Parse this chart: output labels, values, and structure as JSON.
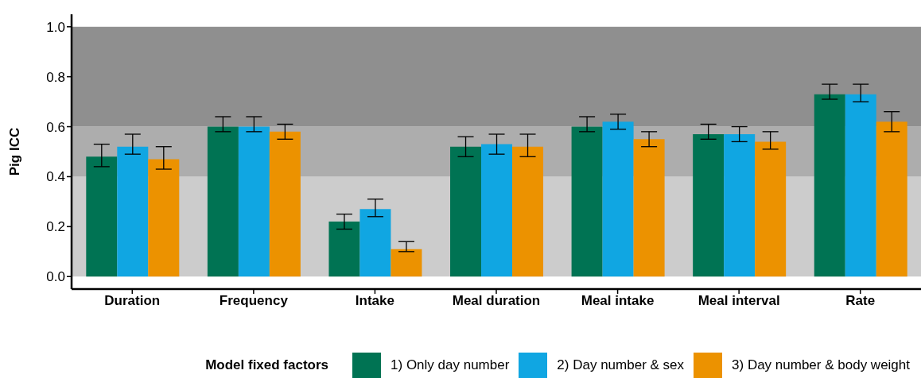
{
  "chart_data": {
    "type": "bar",
    "ylabel": "Pig ICC",
    "legend_title": "Model fixed factors",
    "legend": "bottom",
    "grid": false,
    "categories": [
      "Duration",
      "Frequency",
      "Intake",
      "Meal duration",
      "Meal intake",
      "Meal interval",
      "Rate"
    ],
    "ylim": [
      -0.05,
      1.05
    ],
    "yticks": [
      {
        "value": 0,
        "label": "0.0"
      },
      {
        "value": 0.2,
        "label": "0.2"
      },
      {
        "value": 0.4,
        "label": "0.4"
      },
      {
        "value": 0.6,
        "label": "0.6"
      },
      {
        "value": 0.8,
        "label": "0.8"
      },
      {
        "value": 1,
        "label": "1.0"
      }
    ],
    "bands": [
      {
        "axis": "y",
        "from": 0,
        "to": 0.4,
        "color": "#cccccc"
      },
      {
        "axis": "y",
        "from": 0.4,
        "to": 0.6,
        "color": "#adadad"
      },
      {
        "axis": "y",
        "from": 0.6,
        "to": 1,
        "color": "#8f8f8f"
      }
    ],
    "series": [
      {
        "name": "1) Only day number",
        "color": "#007353",
        "values": [
          0.48,
          0.6,
          0.22,
          0.52,
          0.6,
          0.57,
          0.73
        ],
        "errors": [
          [
            0.44,
            0.53
          ],
          [
            0.58,
            0.64
          ],
          [
            0.19,
            0.25
          ],
          [
            0.48,
            0.56
          ],
          [
            0.58,
            0.64
          ],
          [
            0.55,
            0.61
          ],
          [
            0.71,
            0.77
          ]
        ]
      },
      {
        "name": "2) Day number & sex",
        "color": "#10a6e2",
        "values": [
          0.52,
          0.6,
          0.27,
          0.53,
          0.62,
          0.57,
          0.73
        ],
        "errors": [
          [
            0.49,
            0.57
          ],
          [
            0.58,
            0.64
          ],
          [
            0.24,
            0.31
          ],
          [
            0.49,
            0.57
          ],
          [
            0.59,
            0.65
          ],
          [
            0.54,
            0.6
          ],
          [
            0.7,
            0.77
          ]
        ]
      },
      {
        "name": "3) Day number & body weight",
        "color": "#ec9200",
        "values": [
          0.47,
          0.58,
          0.11,
          0.52,
          0.55,
          0.54,
          0.62
        ],
        "errors": [
          [
            0.43,
            0.52
          ],
          [
            0.55,
            0.61
          ],
          [
            0.1,
            0.14
          ],
          [
            0.48,
            0.57
          ],
          [
            0.52,
            0.58
          ],
          [
            0.51,
            0.58
          ],
          [
            0.58,
            0.66
          ]
        ]
      }
    ]
  }
}
